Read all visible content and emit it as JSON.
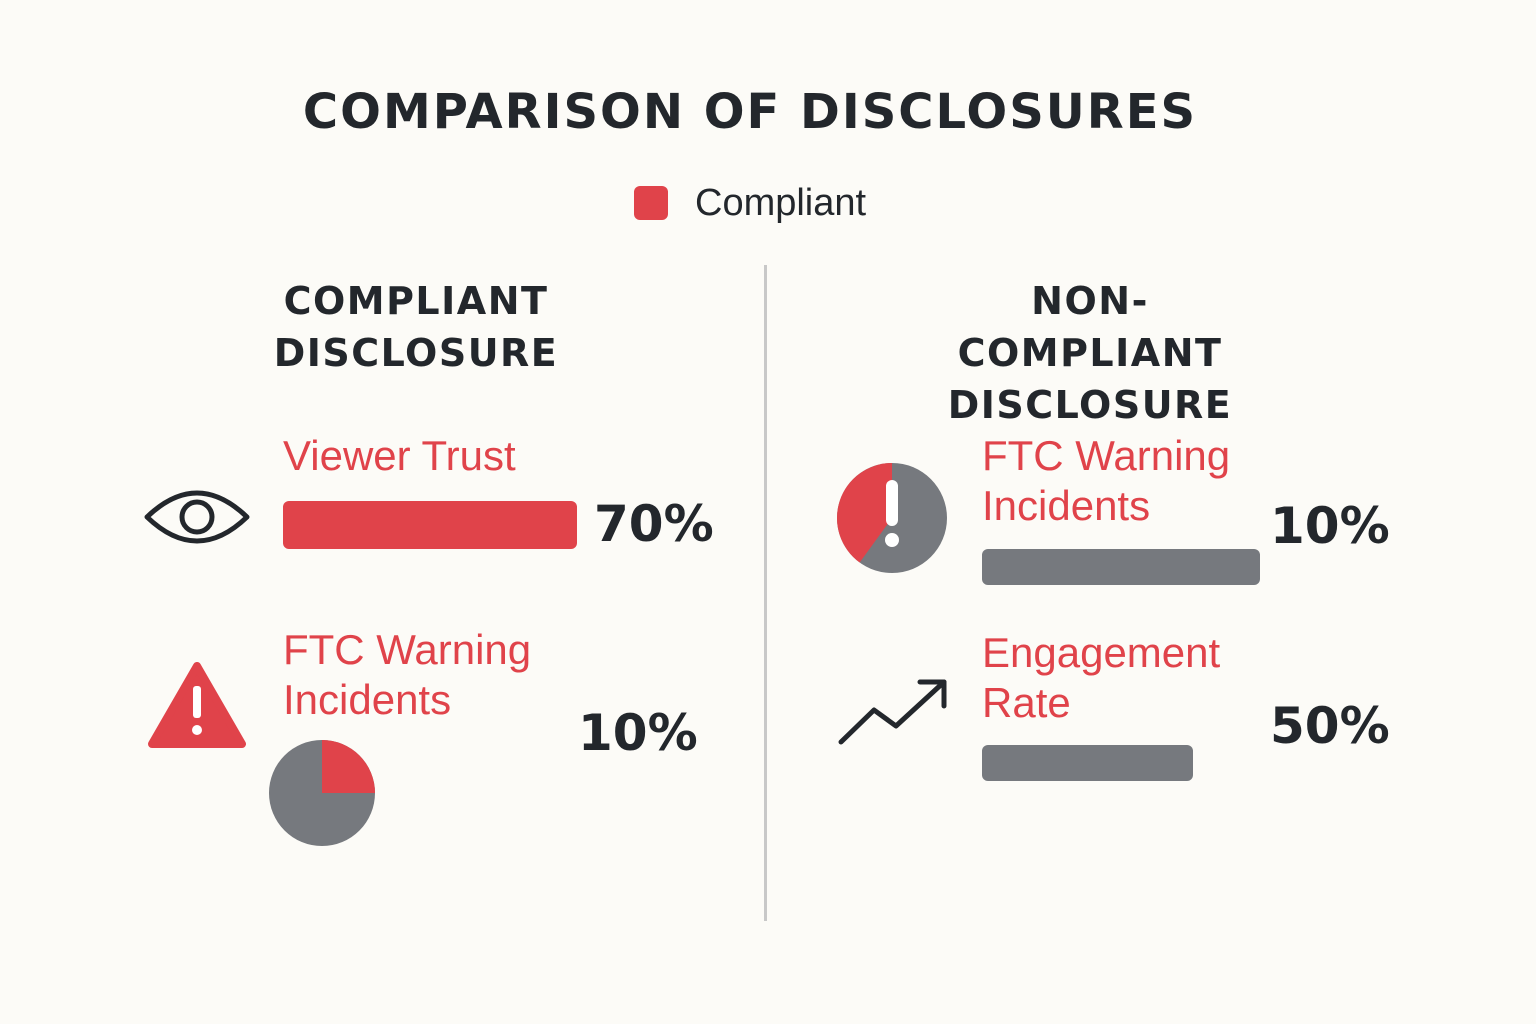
{
  "title": "COMPARISON OF DISCLOSURES",
  "legend": {
    "label": "Compliant",
    "color": "#e0434a"
  },
  "colors": {
    "accent": "#e0434a",
    "neutral": "#76797e",
    "text": "#23272c",
    "background": "#fcfbf7"
  },
  "chart_data": {
    "type": "bar",
    "title": "COMPARISON OF DISCLOSURES",
    "legend": [
      "Compliant"
    ],
    "panels": [
      {
        "name": "COMPLIANT\nDISCLOSURE",
        "metrics": [
          {
            "label": "Viewer Trust",
            "value": 70,
            "value_label": "70%",
            "display": "bar",
            "color": "#e0434a",
            "icon": "eye-icon"
          },
          {
            "label": "FTC Warning\nIncidents",
            "value": 10,
            "value_label": "10%",
            "display": "pie",
            "pie_highlight_fraction": 0.25,
            "color": "#e0434a",
            "icon": "warning-triangle-icon"
          }
        ]
      },
      {
        "name": "NON-COMPLIANT\nDISCLOSURE",
        "metrics": [
          {
            "label": "FTC Warning\nIncidents",
            "value": 10,
            "value_label": "10%",
            "display": "bar",
            "bar_fill_fraction": 1.0,
            "color": "#76797e",
            "icon": "alert-pie-icon",
            "icon_highlight_fraction": 0.4
          },
          {
            "label": "Engagement\nRate",
            "value": 50,
            "value_label": "50%",
            "display": "bar",
            "bar_fill_fraction": 0.76,
            "color": "#76797e",
            "icon": "trend-up-icon"
          }
        ]
      }
    ]
  }
}
